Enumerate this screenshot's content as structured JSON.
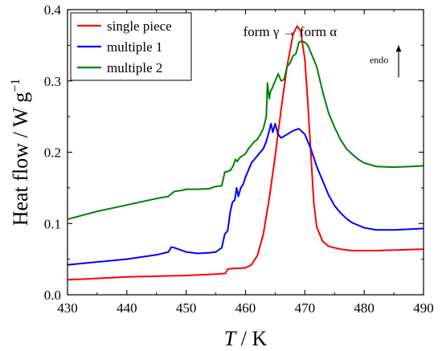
{
  "chart_data": {
    "type": "line",
    "xlabel": {
      "var": "T",
      "unit": " / K"
    },
    "ylabel": "Heat flow / W g",
    "ylabel_sup": "−1",
    "xlim": [
      430,
      490
    ],
    "ylim": [
      0.0,
      0.4
    ],
    "xticks": [
      430,
      440,
      450,
      460,
      470,
      480,
      490
    ],
    "xtick_labels": [
      "430",
      "440",
      "450",
      "460",
      "470",
      "480",
      "490"
    ],
    "yticks": [
      0.0,
      0.1,
      0.2,
      0.3,
      0.4
    ],
    "ytick_labels": [
      "0.0",
      "0.1",
      "0.2",
      "0.3",
      "0.4"
    ],
    "legend_position": "top-left",
    "annotations": {
      "transition": "form γ → form α",
      "endo": "endo"
    },
    "series": [
      {
        "name": "single piece",
        "color": "#ff0000",
        "points": [
          [
            430,
            0.021
          ],
          [
            435,
            0.023
          ],
          [
            440,
            0.025
          ],
          [
            445,
            0.026
          ],
          [
            450,
            0.027
          ],
          [
            455,
            0.029
          ],
          [
            456.6,
            0.03
          ],
          [
            457,
            0.036
          ],
          [
            458,
            0.037
          ],
          [
            459,
            0.037
          ],
          [
            460,
            0.038
          ],
          [
            461,
            0.042
          ],
          [
            462,
            0.055
          ],
          [
            463,
            0.085
          ],
          [
            464,
            0.135
          ],
          [
            465,
            0.195
          ],
          [
            466,
            0.26
          ],
          [
            467,
            0.32
          ],
          [
            468,
            0.365
          ],
          [
            468.7,
            0.377
          ],
          [
            469.3,
            0.37
          ],
          [
            470,
            0.33
          ],
          [
            470.5,
            0.27
          ],
          [
            471,
            0.2
          ],
          [
            471.5,
            0.13
          ],
          [
            472,
            0.095
          ],
          [
            473,
            0.075
          ],
          [
            474,
            0.068
          ],
          [
            476,
            0.064
          ],
          [
            478,
            0.062
          ],
          [
            482,
            0.062
          ],
          [
            486,
            0.063
          ],
          [
            490,
            0.064
          ]
        ]
      },
      {
        "name": "multiple 1",
        "color": "#0000ff",
        "points": [
          [
            430,
            0.042
          ],
          [
            435,
            0.046
          ],
          [
            440,
            0.05
          ],
          [
            445,
            0.056
          ],
          [
            447,
            0.06
          ],
          [
            447.5,
            0.067
          ],
          [
            448,
            0.066
          ],
          [
            449,
            0.063
          ],
          [
            450,
            0.06
          ],
          [
            452,
            0.058
          ],
          [
            454,
            0.059
          ],
          [
            455,
            0.06
          ],
          [
            456,
            0.066
          ],
          [
            456.5,
            0.085
          ],
          [
            457,
            0.09
          ],
          [
            457.4,
            0.115
          ],
          [
            457.8,
            0.13
          ],
          [
            458.2,
            0.133
          ],
          [
            458.5,
            0.15
          ],
          [
            458.8,
            0.138
          ],
          [
            459.2,
            0.15
          ],
          [
            459.6,
            0.155
          ],
          [
            460,
            0.165
          ],
          [
            460.5,
            0.175
          ],
          [
            461,
            0.185
          ],
          [
            461.5,
            0.19
          ],
          [
            462,
            0.195
          ],
          [
            462.5,
            0.2
          ],
          [
            463,
            0.205
          ],
          [
            463.5,
            0.215
          ],
          [
            464,
            0.23
          ],
          [
            464.3,
            0.24
          ],
          [
            464.6,
            0.228
          ],
          [
            465,
            0.24
          ],
          [
            465.5,
            0.225
          ],
          [
            466,
            0.22
          ],
          [
            467,
            0.225
          ],
          [
            468,
            0.23
          ],
          [
            469,
            0.233
          ],
          [
            470,
            0.225
          ],
          [
            471,
            0.205
          ],
          [
            472,
            0.18
          ],
          [
            473,
            0.16
          ],
          [
            474,
            0.14
          ],
          [
            475,
            0.125
          ],
          [
            476,
            0.115
          ],
          [
            477,
            0.107
          ],
          [
            478,
            0.101
          ],
          [
            480,
            0.094
          ],
          [
            482,
            0.091
          ],
          [
            485,
            0.091
          ],
          [
            490,
            0.093
          ]
        ]
      },
      {
        "name": "multiple 2",
        "color": "#008000",
        "points": [
          [
            430,
            0.106
          ],
          [
            435,
            0.117
          ],
          [
            440,
            0.126
          ],
          [
            445,
            0.135
          ],
          [
            447,
            0.138
          ],
          [
            448,
            0.145
          ],
          [
            449,
            0.146
          ],
          [
            450,
            0.148
          ],
          [
            452,
            0.148
          ],
          [
            454,
            0.149
          ],
          [
            455,
            0.152
          ],
          [
            456,
            0.153
          ],
          [
            456.5,
            0.172
          ],
          [
            457,
            0.173
          ],
          [
            457.5,
            0.175
          ],
          [
            458,
            0.182
          ],
          [
            458.3,
            0.19
          ],
          [
            458.6,
            0.187
          ],
          [
            459,
            0.192
          ],
          [
            459.5,
            0.195
          ],
          [
            460,
            0.198
          ],
          [
            460.5,
            0.205
          ],
          [
            461,
            0.21
          ],
          [
            461.5,
            0.215
          ],
          [
            462,
            0.218
          ],
          [
            462.5,
            0.225
          ],
          [
            463,
            0.233
          ],
          [
            463.5,
            0.25
          ],
          [
            463.7,
            0.297
          ],
          [
            464,
            0.275
          ],
          [
            464.2,
            0.285
          ],
          [
            464.5,
            0.29
          ],
          [
            465,
            0.3
          ],
          [
            465.5,
            0.31
          ],
          [
            466,
            0.3
          ],
          [
            466.5,
            0.302
          ],
          [
            467,
            0.32
          ],
          [
            467.5,
            0.325
          ],
          [
            468,
            0.335
          ],
          [
            468.5,
            0.338
          ],
          [
            469,
            0.354
          ],
          [
            469.5,
            0.356
          ],
          [
            470,
            0.354
          ],
          [
            470.5,
            0.35
          ],
          [
            471,
            0.34
          ],
          [
            472,
            0.32
          ],
          [
            473,
            0.285
          ],
          [
            474,
            0.255
          ],
          [
            475,
            0.235
          ],
          [
            476,
            0.218
          ],
          [
            477,
            0.205
          ],
          [
            478,
            0.197
          ],
          [
            479,
            0.19
          ],
          [
            480,
            0.185
          ],
          [
            482,
            0.18
          ],
          [
            485,
            0.179
          ],
          [
            488,
            0.18
          ],
          [
            490,
            0.181
          ]
        ]
      }
    ]
  }
}
